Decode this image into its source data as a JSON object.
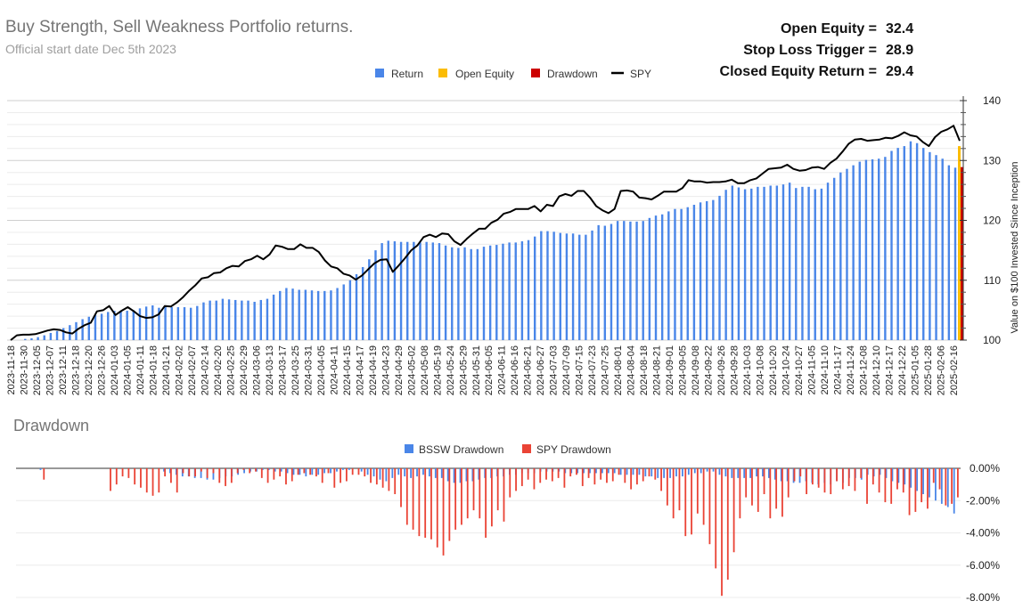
{
  "header": {
    "title": "Buy Strength, Sell Weakness Portfolio returns.",
    "subtitle": "Official start date Dec 5th 2023"
  },
  "stats": [
    {
      "label": "Open Equity =",
      "value": "32.4"
    },
    {
      "label": "Stop Loss Trigger =",
      "value": "28.9"
    },
    {
      "label": "Closed Equity Return =",
      "value": "29.4"
    }
  ],
  "colors": {
    "return": "#4a86e8",
    "open_equity": "#fbbc04",
    "drawdown": "#cc0000",
    "spy": "#000000",
    "bssw_dd": "#4a86e8",
    "spy_dd": "#ea4335",
    "grid": "#d9d9d9"
  },
  "drawdown_section": {
    "title": "Drawdown"
  },
  "chart_data": [
    {
      "type": "bar+line",
      "title": "Buy Strength, Sell Weakness Portfolio returns.",
      "ylabel": "Value on $100 Invested Since Inception",
      "ylim": [
        100,
        140
      ],
      "yticks": [
        100,
        110,
        120,
        130,
        140
      ],
      "legend": [
        "Return",
        "Open Equity",
        "Drawdown",
        "SPY"
      ],
      "xtick_labels": [
        "2023-11-18",
        "2023-11-30",
        "2023-12-05",
        "2023-12-07",
        "2023-12-11",
        "2023-12-18",
        "2023-12-20",
        "2023-12-26",
        "2024-01-03",
        "2024-01-05",
        "2024-01-11",
        "2024-01-18",
        "2024-01-21",
        "2024-02-02",
        "2024-02-07",
        "2024-02-14",
        "2024-02-20",
        "2024-02-25",
        "2024-02-29",
        "2024-03-06",
        "2024-03-13",
        "2024-03-17",
        "2024-03-25",
        "2024-03-31",
        "2024-04-05",
        "2024-04-11",
        "2024-04-15",
        "2024-04-17",
        "2024-04-19",
        "2024-04-23",
        "2024-04-29",
        "2024-05-02",
        "2024-05-08",
        "2024-05-19",
        "2024-05-24",
        "2024-05-29",
        "2024-05-31",
        "2024-06-05",
        "2024-06-11",
        "2024-06-16",
        "2024-06-21",
        "2024-06-27",
        "2024-07-03",
        "2024-07-09",
        "2024-07-15",
        "2024-07-23",
        "2024-07-25",
        "2024-08-01",
        "2024-08-04",
        "2024-08-18",
        "2024-08-21",
        "2024-09-01",
        "2024-09-05",
        "2024-09-08",
        "2024-09-22",
        "2024-09-26",
        "2024-09-28",
        "2024-10-03",
        "2024-10-08",
        "2024-10-20",
        "2024-10-24",
        "2024-10-27",
        "2024-11-05",
        "2024-11-10",
        "2024-11-17",
        "2024-11-24",
        "2024-12-08",
        "2024-12-10",
        "2024-12-17",
        "2024-12-22",
        "2025-01-05",
        "2025-01-28",
        "2025-02-06",
        "2025-02-16"
      ],
      "return_values": [
        100,
        100,
        100.2,
        100.3,
        100.5,
        100.8,
        101.2,
        101.5,
        102,
        102.5,
        103,
        103.5,
        103.9,
        104.2,
        104.4,
        104.7,
        104.9,
        104.9,
        104.9,
        105,
        105.3,
        105.6,
        105.8,
        105.4,
        105.6,
        105.5,
        105.5,
        105.5,
        105.4,
        105.7,
        106.3,
        106.6,
        106.6,
        106.9,
        106.8,
        106.7,
        106.6,
        106.6,
        106.4,
        106.7,
        106.9,
        107.6,
        108.2,
        108.7,
        108.6,
        108.4,
        108.4,
        108.3,
        108.2,
        108.2,
        108.3,
        108.7,
        109.3,
        110,
        111,
        112.2,
        113.5,
        115,
        116.2,
        116.6,
        116.5,
        116.4,
        116.4,
        116.4,
        116.3,
        116.4,
        116.3,
        116.2,
        115.8,
        115.5,
        115.4,
        115.5,
        115.2,
        115.2,
        115.6,
        115.8,
        115.9,
        116.1,
        116.3,
        116.3,
        116.5,
        116.7,
        117.3,
        118.2,
        118.2,
        118.1,
        117.9,
        117.8,
        117.8,
        117.6,
        117.6,
        118.3,
        119.2,
        119.1,
        119.4,
        119.9,
        119.9,
        119.8,
        119.8,
        119.9,
        120.4,
        120.8,
        121,
        121.5,
        121.9,
        121.9,
        122.2,
        122.6,
        123,
        123.2,
        123.4,
        124.1,
        125.1,
        125.8,
        125.5,
        125.2,
        125.3,
        125.6,
        125.6,
        125.8,
        125.8,
        126,
        126.3,
        125.4,
        125.6,
        125.6,
        125.2,
        125.3,
        126.3,
        127.1,
        128,
        128.6,
        129.2,
        129.8,
        130.1,
        130.2,
        130.3,
        130.6,
        131.6,
        132.1,
        132.4,
        133.2,
        132.9,
        132.1,
        131.4,
        130.9,
        130.3,
        129.2,
        128.8
      ],
      "spy_values": [
        100,
        100.8,
        100.9,
        100.9,
        101,
        101.3,
        101.6,
        101.8,
        101.7,
        101.3,
        101.1,
        101.9,
        102.5,
        102.9,
        104.8,
        105,
        105.7,
        104.2,
        104.9,
        105.5,
        104.8,
        104,
        103.7,
        103.8,
        104.3,
        105.7,
        105.6,
        106.3,
        107.2,
        108.3,
        109.2,
        110.3,
        110.5,
        111.2,
        111.3,
        112,
        112.4,
        112.3,
        113.2,
        113.5,
        114.1,
        113.5,
        114.3,
        115.8,
        115.6,
        115.2,
        115.2,
        116,
        115.4,
        115.4,
        114.7,
        113.3,
        112.3,
        112,
        111.1,
        110.8,
        110.1,
        110.8,
        111.8,
        112.8,
        113.4,
        113.5,
        111.4,
        112.5,
        113.7,
        115,
        115.8,
        117.2,
        117.6,
        117.2,
        117.8,
        117.7,
        116.5,
        115.9,
        116.9,
        117.8,
        118.6,
        118.6,
        119.6,
        120.1,
        121.1,
        121.4,
        121.9,
        121.9,
        121.9,
        122.4,
        121.5,
        122.6,
        122.4,
        124,
        124.4,
        124.1,
        124.9,
        124.9,
        123.8,
        122.4,
        121.7,
        121.2,
        121.9,
        124.9,
        125,
        124.8,
        123.8,
        123.7,
        123.5,
        124.1,
        124.8,
        124.8,
        124.8,
        125.4,
        126.7,
        126.5,
        126.5,
        126.3,
        126.4,
        126.4,
        126.5,
        126.8,
        126.2,
        126.2,
        126.7,
        127,
        127.8,
        128.6,
        128.7,
        128.8,
        129.3,
        128.6,
        128.3,
        128.4,
        128.8,
        128.9,
        128.6,
        129.6,
        130.3,
        131.5,
        132.8,
        133.5,
        133.6,
        133.3,
        133.4,
        133.5,
        133.8,
        133.7,
        134.1,
        134.7,
        134.2,
        134,
        133.1,
        132.4,
        133.9,
        134.8,
        135.2,
        135.8,
        133.3
      ],
      "open_equity": 132.4,
      "drawdown_value": 128.9
    },
    {
      "type": "bar",
      "title": "Drawdown",
      "ylim": [
        -8,
        0
      ],
      "yticks": [
        "0.00%",
        "-2.00%",
        "-4.00%",
        "-6.00%",
        "-8.00%"
      ],
      "legend": [
        "BSSW Drawdown",
        "SPY Drawdown"
      ],
      "bssw_drawdown_pct": [
        0,
        0,
        0,
        -0.1,
        0,
        0,
        0,
        0,
        0,
        0,
        0,
        0,
        0,
        0,
        0,
        0,
        0,
        0,
        0,
        0,
        0,
        0,
        0,
        -0.2,
        -0.3,
        -0.4,
        -0.5,
        -0.5,
        -0.6,
        -0.6,
        -0.7,
        -0.7,
        -0.6,
        -0.5,
        -0.5,
        -0.4,
        -0.3,
        -0.2,
        -0.2,
        -0.1,
        -0.1,
        -0.2,
        -0.2,
        -0.3,
        -0.4,
        -0.4,
        -0.5,
        -0.4,
        -0.4,
        -0.3,
        -0.3,
        -0.2,
        -0.1,
        -0.1,
        0,
        -0.2,
        -0.4,
        -0.5,
        -0.7,
        -0.8,
        -0.6,
        -0.4,
        -0.5,
        -0.6,
        -0.5,
        -0.4,
        -0.5,
        -0.6,
        -0.6,
        -0.8,
        -0.9,
        -0.9,
        -0.8,
        -0.8,
        -0.7,
        -0.6,
        -0.6,
        -0.5,
        -0.5,
        -0.4,
        -0.4,
        -0.3,
        -0.3,
        -0.3,
        -0.2,
        -0.2,
        -0.2,
        -0.2,
        -0.3,
        -0.3,
        -0.3,
        -0.3,
        -0.3,
        -0.3,
        -0.3,
        -0.3,
        -0.3,
        -0.4,
        -0.4,
        -0.4,
        -0.4,
        -0.5,
        -0.5,
        -0.6,
        -0.6,
        -0.6,
        -0.5,
        -0.5,
        -0.4,
        -0.3,
        -0.3,
        -0.2,
        -0.2,
        -0.4,
        -0.5,
        -0.6,
        -0.6,
        -0.6,
        -0.6,
        -0.5,
        -0.5,
        -0.6,
        -0.7,
        -0.8,
        -0.8,
        -0.9,
        -0.9,
        -0.8,
        -0.9,
        -1.0,
        -0.9,
        -1.0,
        -0.8,
        -0.9,
        -0.6,
        -0.6,
        -0.7,
        -0.4,
        -0.5,
        -0.4,
        -0.6,
        -0.8,
        -0.9,
        -1.0,
        -1.2,
        -1.4,
        -1.6,
        -1.8,
        -2.0,
        -2.2,
        -2.4,
        -2.8
      ],
      "spy_drawdown_pct": [
        0,
        0,
        0,
        -0.7,
        0,
        0,
        0,
        0,
        0,
        0,
        0,
        0,
        0,
        0,
        -1.4,
        -1.0,
        -0.5,
        -0.6,
        -1.0,
        -1.2,
        -1.5,
        -1.7,
        -1.5,
        -0.5,
        -0.9,
        -1.5,
        -0.3,
        -0.5,
        -0.5,
        -0.2,
        -0.6,
        -0.3,
        -0.9,
        -1.1,
        -0.9,
        -0.3,
        -0.1,
        -0.3,
        -0.2,
        -0.6,
        -0.9,
        -0.7,
        -0.5,
        -1.0,
        -0.8,
        -0.4,
        -0.3,
        -0.4,
        -0.5,
        -0.9,
        -0.3,
        -1.2,
        -0.9,
        -0.8,
        -0.4,
        -0.4,
        -0.5,
        -0.9,
        -1.0,
        -1.2,
        -1.4,
        -1.6,
        -2.4,
        -3.5,
        -3.8,
        -4.2,
        -4.3,
        -4.4,
        -4.9,
        -5.4,
        -4.5,
        -3.8,
        -3.5,
        -3.1,
        -2.6,
        -3.1,
        -4.3,
        -3.6,
        -2.6,
        -3.3,
        -1.8,
        -1.4,
        -1.1,
        -0.7,
        -1.3,
        -0.9,
        -0.7,
        -0.8,
        -0.6,
        -1.2,
        -0.5,
        -0.4,
        -1.1,
        -0.6,
        -1.0,
        -0.7,
        -0.9,
        -0.8,
        -0.4,
        -0.9,
        -1.3,
        -1.0,
        -0.8,
        -0.5,
        -0.7,
        -1.4,
        -2.3,
        -3.1,
        -2.6,
        -4.2,
        -4.1,
        -2.8,
        -3.5,
        -4.7,
        -6.2,
        -7.9,
        -6.9,
        -5.2,
        -3.1,
        -1.8,
        -2.3,
        -2.7,
        -1.6,
        -3.1,
        -2.5,
        -3.0,
        -1.8,
        -0.8,
        -0.5,
        -1.6,
        -1.0,
        -1.2,
        -1.5,
        -1.6,
        -0.8,
        -1.3,
        -1.1,
        -1.4,
        -0.6,
        -2.2,
        -1.0,
        -1.5,
        -2.1,
        -2.2,
        -1.3,
        -1.5,
        -2.9,
        -2.7,
        -2.1,
        -2.5,
        -0.9,
        -1.3,
        -2.3,
        -2.2,
        -1.8
      ]
    }
  ]
}
